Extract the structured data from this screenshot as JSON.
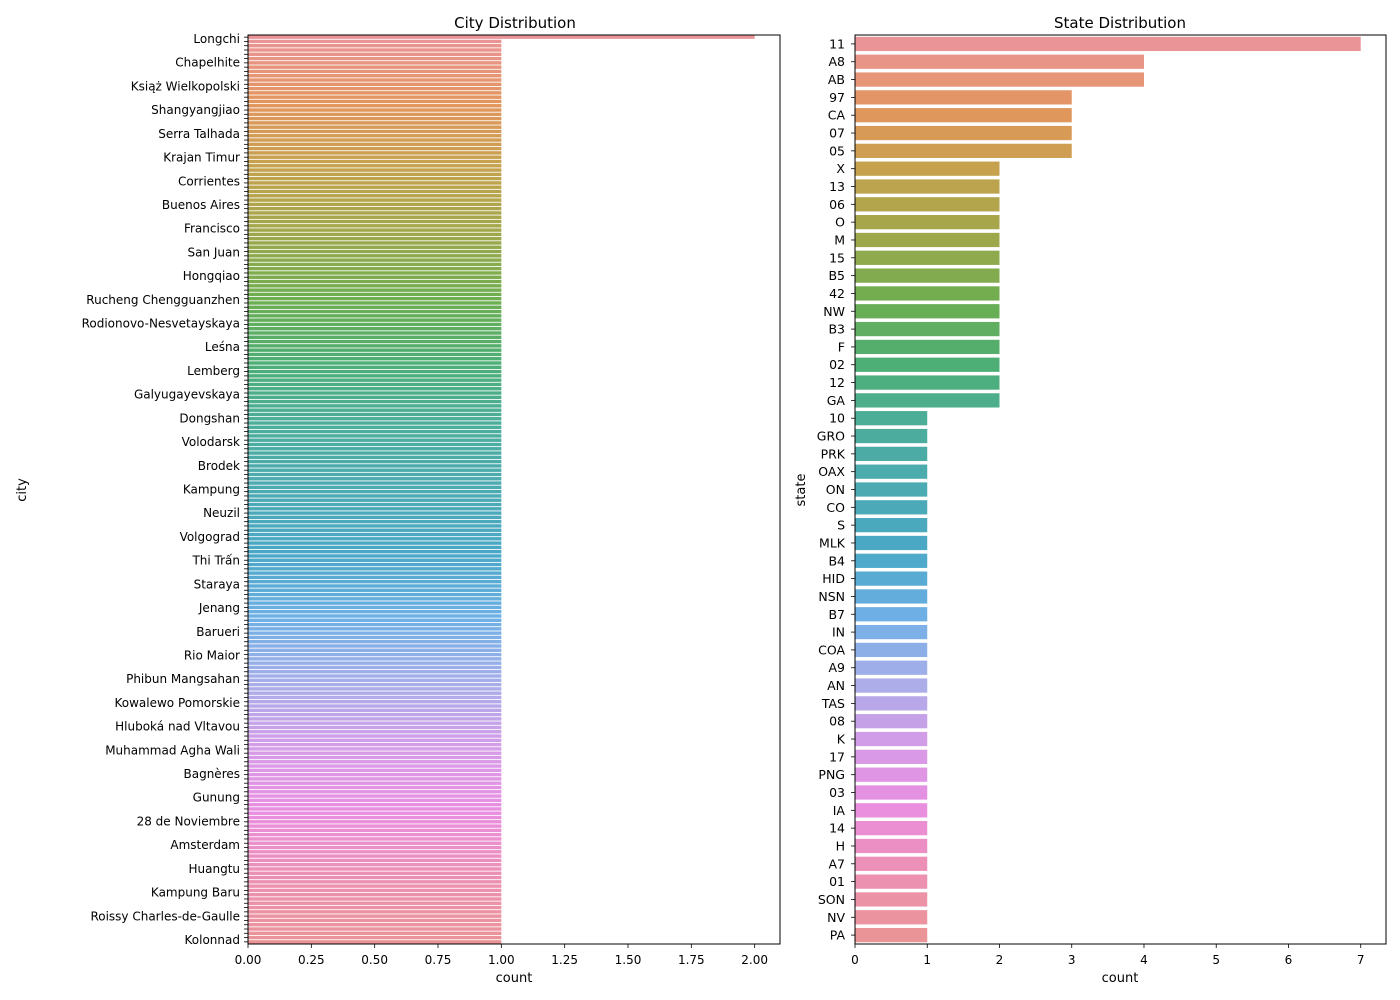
{
  "chart_data": [
    {
      "type": "bar",
      "orientation": "horizontal",
      "title": "City Distribution",
      "xlabel": "count",
      "ylabel": "city",
      "xlim": [
        0,
        2.1
      ],
      "xticks": [
        "0.00",
        "0.25",
        "0.50",
        "0.75",
        "1.00",
        "1.25",
        "1.50",
        "1.75",
        "2.00"
      ],
      "category_count": 212,
      "values_rule": "first category = 2, all remaining categories = 1",
      "readable_labels": [
        "Longchi",
        "Chapelhite",
        "Książ Wielkopolski",
        "Shangyangjiao",
        "Serra Talhada",
        "Krajan Timur",
        "Corrientes",
        "Buenos Aires",
        "Francisco",
        "San Juan",
        "Hongqiao",
        "Rucheng Chengguanzhen",
        "Rodionovo-Nesvetayskaya",
        "Leśna",
        "Lemberg",
        "Galyugayevskaya",
        "Dongshan",
        "Volodarsk",
        "Brodek",
        "Kampung",
        "Neuzil",
        "Volgograd",
        "Thi Trấn",
        "Staraya",
        "Jenang",
        "Barueri",
        "Rio Maior",
        "Phibun Mangsahan",
        "Kowalewo Pomorskie",
        "Hluboká nad Vltavou",
        "Muhammad Agha Wali",
        "Bagnères",
        "Gunung",
        "28 de Noviembre",
        "Amsterdam",
        "Huangtu",
        "Kampung Baru",
        "Roissy Charles-de-Gaulle",
        "Kolonnad"
      ]
    },
    {
      "type": "bar",
      "orientation": "horizontal",
      "title": "State Distribution",
      "xlabel": "count",
      "ylabel": "state",
      "xlim": [
        0,
        7.35
      ],
      "xticks": [
        "0",
        "1",
        "2",
        "3",
        "4",
        "5",
        "6",
        "7"
      ],
      "categories": [
        "11",
        "A8",
        "AB",
        "97",
        "CA",
        "07",
        "05",
        "X",
        "13",
        "06",
        "O",
        "M",
        "15",
        "B5",
        "42",
        "NW",
        "B3",
        "F",
        "02",
        "12",
        "GA",
        "10",
        "GRO",
        "PRK",
        "OAX",
        "ON",
        "CO",
        "S",
        "MLK",
        "B4",
        "HID",
        "NSN",
        "B7",
        "IN",
        "COA",
        "A9",
        "AN",
        "TAS",
        "08",
        "K",
        "17",
        "PNG",
        "03",
        "IA",
        "14",
        "H",
        "A7",
        "01",
        "SON",
        "NV",
        "PA"
      ],
      "values": [
        7,
        4,
        4,
        3,
        3,
        3,
        3,
        2,
        2,
        2,
        2,
        2,
        2,
        2,
        2,
        2,
        2,
        2,
        2,
        2,
        2,
        1,
        1,
        1,
        1,
        1,
        1,
        1,
        1,
        1,
        1,
        1,
        1,
        1,
        1,
        1,
        1,
        1,
        1,
        1,
        1,
        1,
        1,
        1,
        1,
        1,
        1,
        1,
        1,
        1,
        1
      ]
    }
  ]
}
